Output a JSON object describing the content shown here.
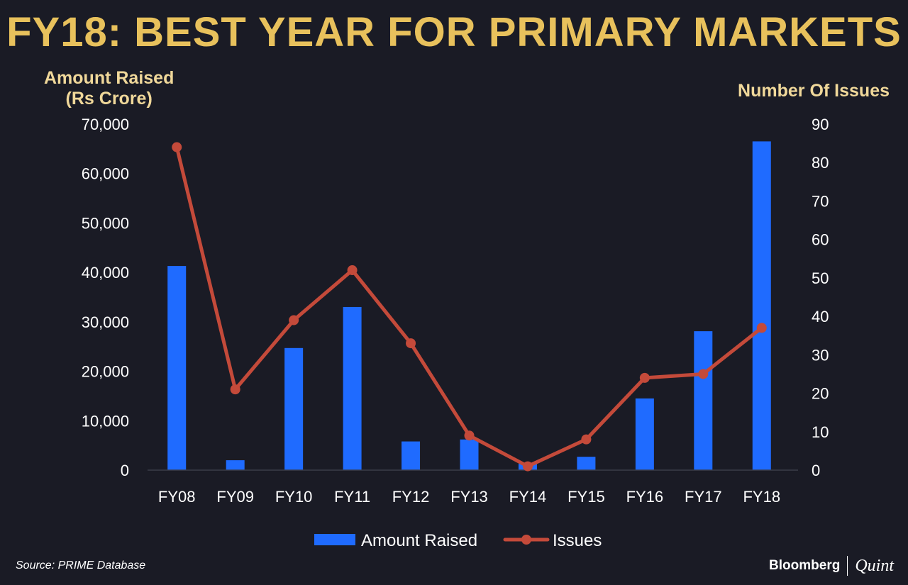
{
  "title": "FY18: BEST YEAR FOR PRIMARY MARKETS",
  "colors": {
    "background": "#1a1b25",
    "title": "#e8c15c",
    "axis_title": "#f0d89a",
    "bar": "#1f6bff",
    "line": "#c44a3a"
  },
  "chart_data": {
    "type": "bar+line",
    "categories": [
      "FY08",
      "FY09",
      "FY10",
      "FY11",
      "FY12",
      "FY13",
      "FY14",
      "FY15",
      "FY16",
      "FY17",
      "FY18"
    ],
    "series": [
      {
        "name": "Amount Raised",
        "type": "bar",
        "axis": "left",
        "values": [
          41300,
          2000,
          24700,
          33000,
          5800,
          6200,
          1300,
          2700,
          14500,
          28100,
          66500
        ]
      },
      {
        "name": "Issues",
        "type": "line",
        "axis": "right",
        "values": [
          84,
          21,
          39,
          52,
          33,
          9,
          1,
          8,
          24,
          25,
          37
        ]
      }
    ],
    "y_left": {
      "label_line1": "Amount Raised",
      "label_line2": "(Rs Crore)",
      "range": [
        0,
        70000
      ],
      "ticks": [
        "0",
        "10,000",
        "20,000",
        "30,000",
        "40,000",
        "50,000",
        "60,000",
        "70,000"
      ]
    },
    "y_right": {
      "label": "Number Of Issues",
      "range": [
        0,
        90
      ],
      "ticks": [
        "0",
        "10",
        "20",
        "30",
        "40",
        "50",
        "60",
        "70",
        "80",
        "90"
      ]
    },
    "legend": {
      "bar_label": "Amount Raised",
      "line_label": "Issues",
      "position": "bottom-center"
    },
    "grid": false
  },
  "source": "Source: PRIME Database",
  "brand": {
    "left": "Bloomberg",
    "right": "Quint"
  }
}
